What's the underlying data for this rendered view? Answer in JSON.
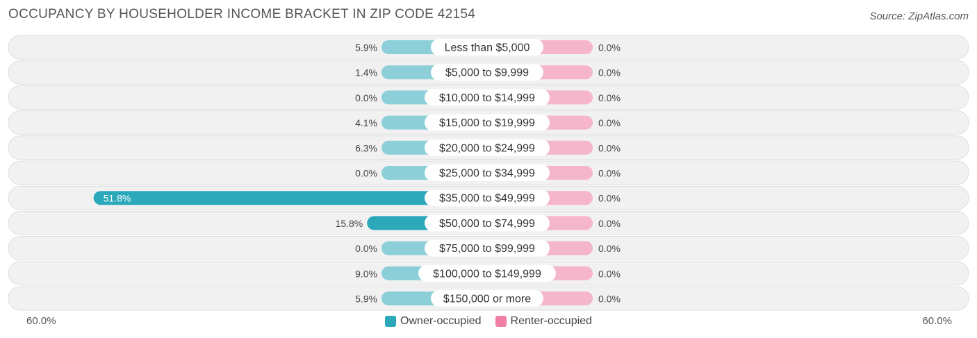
{
  "title": "OCCUPANCY BY HOUSEHOLDER INCOME BRACKET IN ZIP CODE 42154",
  "source": "Source: ZipAtlas.com",
  "colors": {
    "owner": "#2ba8ba",
    "owner_light": "#8dcfd9",
    "renter": "#f17fa5",
    "renter_light": "#f5b6cb",
    "row_bg": "#f1f1f1",
    "row_border": "#dedede"
  },
  "legend": {
    "owner": "Owner-occupied",
    "renter": "Renter-occupied"
  },
  "axis": {
    "left_label": "60.0%",
    "right_label": "60.0%"
  },
  "chart_data": {
    "type": "bar",
    "orientation": "diverging-horizontal",
    "xlim": [
      -60,
      60
    ],
    "categories": [
      "Less than $5,000",
      "$5,000 to $9,999",
      "$10,000 to $14,999",
      "$15,000 to $19,999",
      "$20,000 to $24,999",
      "$25,000 to $34,999",
      "$35,000 to $49,999",
      "$50,000 to $74,999",
      "$75,000 to $99,999",
      "$100,000 to $149,999",
      "$150,000 or more"
    ],
    "series": [
      {
        "name": "Owner-occupied",
        "values": [
          5.9,
          1.4,
          0.0,
          4.1,
          6.3,
          0.0,
          51.8,
          15.8,
          0.0,
          9.0,
          5.9
        ],
        "labels": [
          "5.9%",
          "1.4%",
          "0.0%",
          "4.1%",
          "6.3%",
          "0.0%",
          "51.8%",
          "15.8%",
          "0.0%",
          "9.0%",
          "5.9%"
        ]
      },
      {
        "name": "Renter-occupied",
        "values": [
          0.0,
          0.0,
          0.0,
          0.0,
          0.0,
          0.0,
          0.0,
          0.0,
          0.0,
          0.0,
          0.0
        ],
        "labels": [
          "0.0%",
          "0.0%",
          "0.0%",
          "0.0%",
          "0.0%",
          "0.0%",
          "0.0%",
          "0.0%",
          "0.0%",
          "0.0%",
          "0.0%"
        ]
      }
    ]
  }
}
